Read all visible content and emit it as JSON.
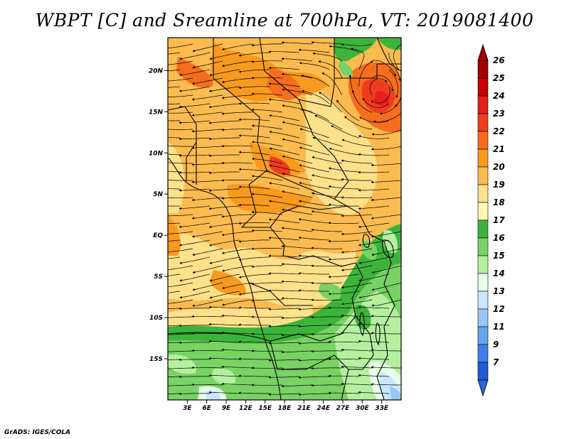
{
  "title": "WBPT [C] and Sreamline at 700hPa, VT: 2019081400",
  "credit": "GrADS: IGES/COLA",
  "map": {
    "lon_range": [
      0,
      36
    ],
    "lat_range": [
      -20,
      24
    ],
    "lat_ticks": [
      {
        "value": 20,
        "label": "20N"
      },
      {
        "value": 15,
        "label": "15N"
      },
      {
        "value": 10,
        "label": "10N"
      },
      {
        "value": 5,
        "label": "5N"
      },
      {
        "value": 0,
        "label": "EQ"
      },
      {
        "value": -5,
        "label": "5S"
      },
      {
        "value": -10,
        "label": "10S"
      },
      {
        "value": -15,
        "label": "15S"
      }
    ],
    "lon_ticks": [
      {
        "value": 3,
        "label": "3E"
      },
      {
        "value": 6,
        "label": "6E"
      },
      {
        "value": 9,
        "label": "9E"
      },
      {
        "value": 12,
        "label": "12E"
      },
      {
        "value": 15,
        "label": "15E"
      },
      {
        "value": 18,
        "label": "18E"
      },
      {
        "value": 21,
        "label": "21E"
      },
      {
        "value": 24,
        "label": "24E"
      },
      {
        "value": 27,
        "label": "27E"
      },
      {
        "value": 30,
        "label": "30E"
      },
      {
        "value": 33,
        "label": "33E"
      }
    ]
  },
  "colorbar": {
    "levels": [
      {
        "label": "26",
        "color": "#a00000"
      },
      {
        "label": "25",
        "color": "#c80000"
      },
      {
        "label": "24",
        "color": "#e61e1e"
      },
      {
        "label": "23",
        "color": "#f03c1e"
      },
      {
        "label": "22",
        "color": "#f56e1e"
      },
      {
        "label": "21",
        "color": "#f89a1e"
      },
      {
        "label": "20",
        "color": "#fbbb50"
      },
      {
        "label": "19",
        "color": "#fde08a"
      },
      {
        "label": "18",
        "color": "#fff8b4"
      },
      {
        "label": "17",
        "color": "#3cb43c"
      },
      {
        "label": "16",
        "color": "#78d264"
      },
      {
        "label": "15",
        "color": "#b4f0a0"
      },
      {
        "label": "14",
        "color": "#e6ffe6"
      },
      {
        "label": "13",
        "color": "#c8e6ff"
      },
      {
        "label": "12",
        "color": "#96c8f5"
      },
      {
        "label": "11",
        "color": "#64a6eb"
      },
      {
        "label": "9",
        "color": "#3c82e6"
      },
      {
        "label": "7",
        "color": "#1e5ad2"
      }
    ],
    "bottom_color": "#2a62d8"
  }
}
